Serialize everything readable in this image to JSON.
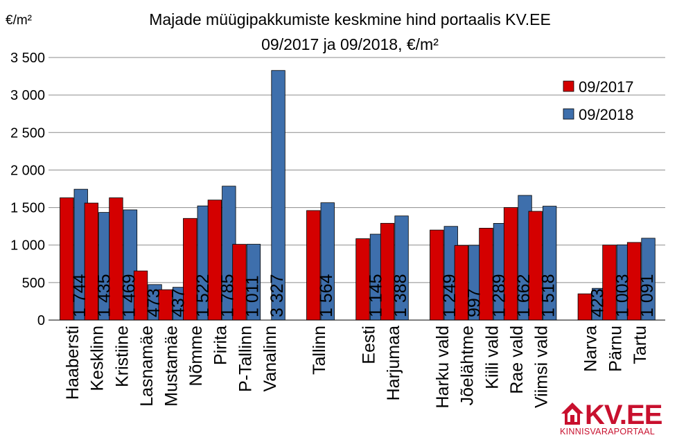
{
  "chart_data": {
    "type": "bar",
    "title_line1": "Majade müügipakkumiste keskmine hind portaalis KV.EE",
    "title_line2": "09/2017 ja 09/2018, €/m²",
    "unit_label": "€/m²",
    "ylim": [
      0,
      3500
    ],
    "yticks": [
      0,
      500,
      1000,
      1500,
      2000,
      2500,
      3000,
      3500
    ],
    "ytick_labels": [
      "0",
      "500",
      "1 000",
      "1 500",
      "2 000",
      "2 500",
      "3 000",
      "3 500"
    ],
    "grid": true,
    "legend_position": "top-right",
    "colors": {
      "s2017": "#d40000",
      "s2018": "#3e6fac"
    },
    "series": [
      {
        "name": "09/2017",
        "values": [
          1630,
          1560,
          1630,
          655,
          405,
          1355,
          1600,
          1010,
          null,
          1460,
          1085,
          1290,
          1200,
          995,
          1225,
          1500,
          1450,
          350,
          1000,
          1035
        ]
      },
      {
        "name": "09/2018",
        "values": [
          1744,
          1435,
          1469,
          473,
          437,
          1522,
          1785,
          1011,
          3327,
          1564,
          1145,
          1388,
          1249,
          997,
          1289,
          1662,
          1518,
          423,
          1003,
          1091
        ]
      }
    ],
    "data_labels": [
      "1 744",
      "1 435",
      "1 469",
      "473",
      "437",
      "1 522",
      "1 785",
      "1 011",
      "3 327",
      "1 564",
      "1 145",
      "1 388",
      "1 249",
      "997",
      "1 289",
      "1 662",
      "1 518",
      "423",
      "1 003",
      "1 091"
    ],
    "categories": [
      "Haabersti",
      "Kesklinn",
      "Kristiine",
      "Lasnamäe",
      "Mustamäe",
      "Nõmme",
      "Pirita",
      "P-Tallinn",
      "Vanalinn",
      "Tallinn",
      "Eesti",
      "Harjumaa",
      "Harku vald",
      "Jõelähtme",
      "Kiili vald",
      "Rae vald",
      "Viimsi vald",
      "Narva",
      "Pärnu",
      "Tartu"
    ]
  },
  "logo": {
    "text": "KV.EE",
    "subtitle": "KINNISVARAPORTAAL"
  }
}
